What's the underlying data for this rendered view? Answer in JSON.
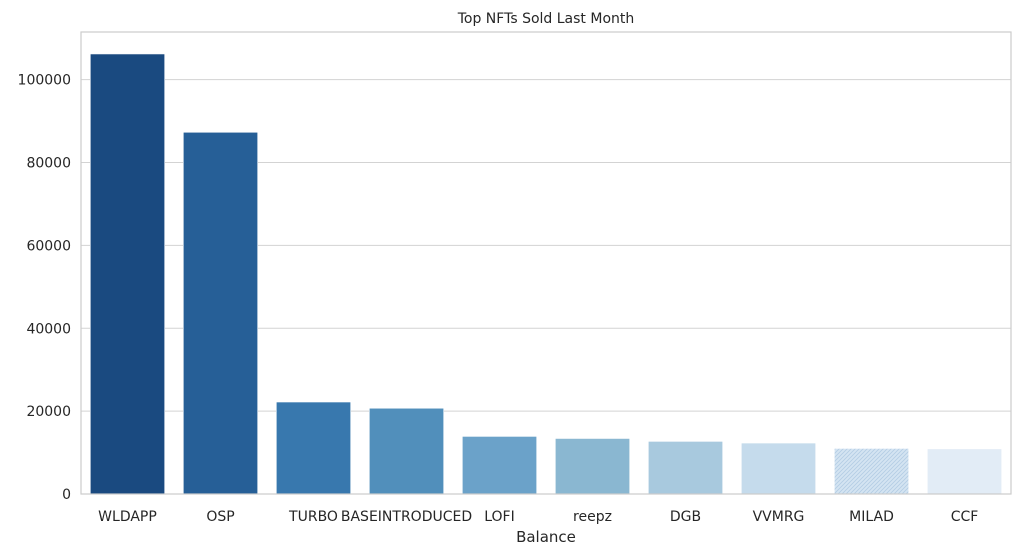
{
  "chart_data": {
    "type": "bar",
    "title": "Top NFTs Sold Last Month",
    "xlabel": "Balance",
    "ylabel": "",
    "categories": [
      "WLDAPP",
      "OSP",
      "TURBO",
      "BASEINTRODUCED",
      "LOFI",
      "reepz",
      "DGB",
      "VVMRG",
      "MILAD",
      "CCF"
    ],
    "values": [
      106200,
      87300,
      22200,
      20700,
      13900,
      13400,
      12700,
      12300,
      11000,
      10900
    ],
    "colors": [
      "#1a4a80",
      "#265f97",
      "#3878ae",
      "#518fbb",
      "#6ba2c9",
      "#8ab7d1",
      "#a8c9de",
      "#c5dbec",
      "#d4e4f2",
      "#e2ecf6"
    ],
    "hatched": [
      false,
      false,
      false,
      false,
      false,
      false,
      false,
      false,
      true,
      false
    ],
    "ylim": [
      0,
      111500
    ],
    "yticks": [
      0,
      20000,
      40000,
      60000,
      80000,
      100000
    ],
    "ytick_labels": [
      "0",
      "20000",
      "40000",
      "60000",
      "80000",
      "100000"
    ],
    "grid": "horizontal"
  }
}
